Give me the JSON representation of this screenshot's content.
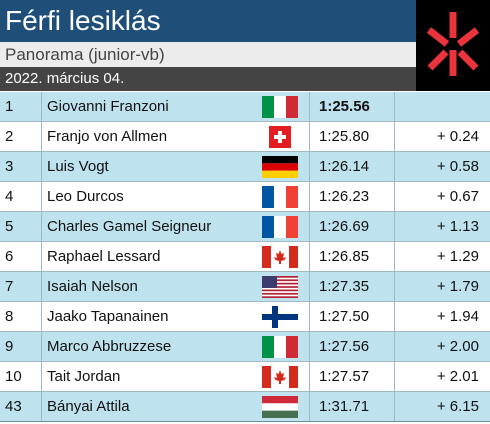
{
  "header": {
    "title": "Férfi lesiklás",
    "subtitle": "Panorama (junior-vb)",
    "date": "2022. március 04."
  },
  "colors": {
    "title_bg": "#1f4e79",
    "subtitle_bg": "#ececec",
    "date_bg": "#444444",
    "row_alt": "#bfe2ef",
    "logo_red": "#e8343a"
  },
  "results": [
    {
      "rank": "1",
      "name": "Giovanni Franzoni",
      "flag": "it-flag-icon",
      "time": "1:25.56",
      "gap": ""
    },
    {
      "rank": "2",
      "name": "Franjo von Allmen",
      "flag": "ch-flag-icon",
      "time": "1:25.80",
      "gap": "+ 0.24"
    },
    {
      "rank": "3",
      "name": "Luis Vogt",
      "flag": "de-flag-icon",
      "time": "1:26.14",
      "gap": "+ 0.58"
    },
    {
      "rank": "4",
      "name": "Leo Durcos",
      "flag": "fr-flag-icon",
      "time": "1:26.23",
      "gap": "+ 0.67"
    },
    {
      "rank": "5",
      "name": "Charles Gamel Seigneur",
      "flag": "fr-flag-icon",
      "time": "1:26.69",
      "gap": "+ 1.13"
    },
    {
      "rank": "6",
      "name": "Raphael Lessard",
      "flag": "ca-flag-icon",
      "time": "1:26.85",
      "gap": "+ 1.29"
    },
    {
      "rank": "7",
      "name": "Isaiah Nelson",
      "flag": "us-flag-icon",
      "time": "1:27.35",
      "gap": "+ 1.79"
    },
    {
      "rank": "8",
      "name": "Jaako Tapanainen",
      "flag": "fi-flag-icon",
      "time": "1:27.50",
      "gap": "+ 1.94"
    },
    {
      "rank": "9",
      "name": "Marco Abbruzzese",
      "flag": "it-flag-icon",
      "time": "1:27.56",
      "gap": "+ 2.00"
    },
    {
      "rank": "10",
      "name": "Tait Jordan",
      "flag": "ca-flag-icon",
      "time": "1:27.57",
      "gap": "+ 2.01"
    },
    {
      "rank": "43",
      "name": "Bányai Attila",
      "flag": "hu-flag-icon",
      "time": "1:31.71",
      "gap": "+ 6.15"
    }
  ]
}
